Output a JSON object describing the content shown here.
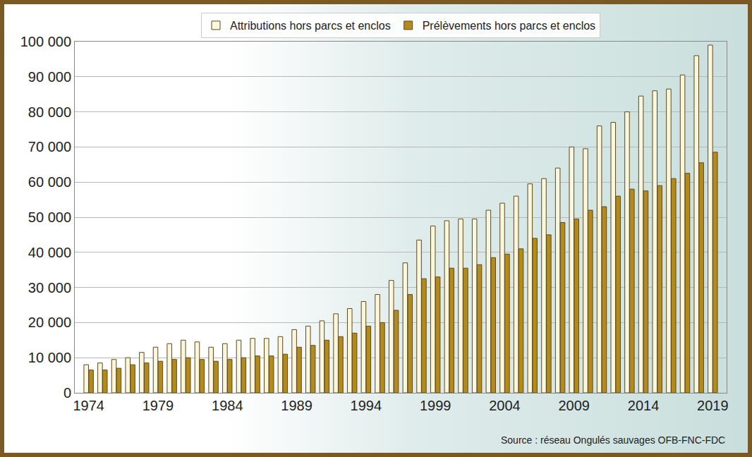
{
  "chart_data": {
    "type": "bar",
    "x": [
      1974,
      1975,
      1976,
      1977,
      1978,
      1979,
      1980,
      1981,
      1982,
      1983,
      1984,
      1985,
      1986,
      1987,
      1988,
      1989,
      1990,
      1991,
      1992,
      1993,
      1994,
      1995,
      1996,
      1997,
      1998,
      1999,
      2000,
      2001,
      2002,
      2003,
      2004,
      2005,
      2006,
      2007,
      2008,
      2009,
      2010,
      2011,
      2012,
      2013,
      2014,
      2015,
      2016,
      2017,
      2018,
      2019
    ],
    "series": [
      {
        "name": "Attributions hors parcs et enclos",
        "color": "#fbf6de",
        "values": [
          8000,
          8500,
          9500,
          10000,
          11500,
          13000,
          14000,
          15000,
          14500,
          13000,
          14000,
          15000,
          15500,
          15500,
          16000,
          18000,
          19000,
          20500,
          22500,
          24000,
          26000,
          28000,
          32000,
          37000,
          43500,
          47500,
          49000,
          49500,
          49500,
          52000,
          54000,
          56000,
          59500,
          61000,
          64000,
          70000,
          69500,
          76000,
          77000,
          80000,
          84500,
          86000,
          86500,
          90500,
          96000,
          99000
        ]
      },
      {
        "name": "Prélèvements hors parcs et enclos",
        "color": "#b38b1d",
        "values": [
          6500,
          6500,
          7000,
          8000,
          8500,
          9000,
          9500,
          10000,
          9500,
          9000,
          9500,
          10000,
          10500,
          10500,
          11000,
          13000,
          13500,
          15000,
          16000,
          17000,
          19000,
          20000,
          23500,
          28000,
          32500,
          33000,
          35500,
          35500,
          36500,
          38500,
          39500,
          41000,
          44000,
          45000,
          48500,
          49500,
          52000,
          53000,
          56000,
          58000,
          57500,
          59000,
          61000,
          62500,
          65500,
          68500
        ]
      }
    ],
    "xlim": [
      1973,
      2020
    ],
    "xticks": [
      1974,
      1979,
      1984,
      1989,
      1994,
      1999,
      2004,
      2009,
      2014,
      2019
    ],
    "ylim": [
      0,
      100000
    ],
    "yticks": [
      0,
      {
        "value": 10000,
        "label": "10 000"
      },
      {
        "value": 20000,
        "label": "20 000"
      },
      {
        "value": 30000,
        "label": "30 000"
      },
      {
        "value": 40000,
        "label": "40 000"
      },
      {
        "value": 50000,
        "label": "50 000"
      },
      {
        "value": 60000,
        "label": "60 000"
      },
      {
        "value": 70000,
        "label": "70 000"
      },
      {
        "value": 80000,
        "label": "80 000"
      },
      {
        "value": 90000,
        "label": "90 000"
      },
      {
        "value": 100000,
        "label": "100 000"
      }
    ],
    "annotations": [
      "Source : réseau Ongulés sauvages OFB-FNC-FDC"
    ],
    "grid": true,
    "legend": "top"
  }
}
